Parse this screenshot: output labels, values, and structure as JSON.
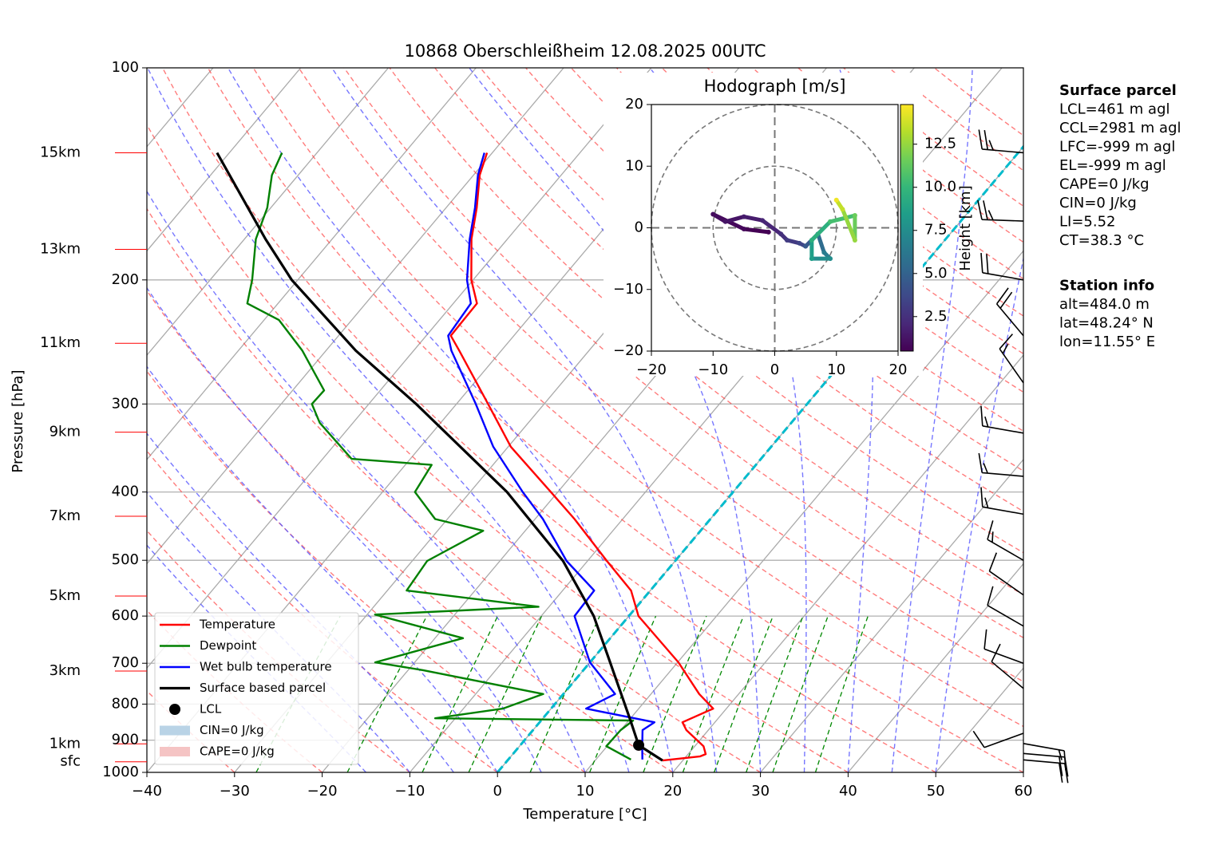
{
  "chart_data": {
    "type": "skewt",
    "title": "10868 Oberschleißheim 12.08.2025 00UTC",
    "xlabel": "Temperature [°C]",
    "ylabel": "Pressure [hPa]",
    "xlim": [
      -40,
      60
    ],
    "ylim": [
      1000,
      100
    ],
    "xticks": [
      {
        "value": -40,
        "label": "−40"
      },
      {
        "value": -30,
        "label": "−30"
      },
      {
        "value": -20,
        "label": "−20"
      },
      {
        "value": -10,
        "label": "−10"
      },
      0,
      10,
      20,
      30,
      40,
      50,
      60
    ],
    "yticks": [
      100,
      200,
      300,
      400,
      500,
      600,
      700,
      800,
      900,
      1000
    ],
    "grid": true,
    "series": [
      {
        "name": "Temperature",
        "color": "#ff0000",
        "pressure": [
          962,
          949,
          942,
          918,
          871,
          849,
          812,
          774,
          698,
          600,
          552,
          501,
          437,
          400,
          345,
          300,
          252,
          240,
          216,
          200,
          175,
          158,
          142,
          132
        ],
        "values": [
          17.7,
          21.6,
          22.0,
          21.0,
          17.5,
          16.3,
          18.5,
          15.5,
          10.1,
          1.1,
          -2.2,
          -7.8,
          -15.5,
          -20.8,
          -29.7,
          -36.4,
          -44.8,
          -47.2,
          -47.3,
          -50.2,
          -54.1,
          -56.5,
          -59.3,
          -60.6
        ]
      },
      {
        "name": "Dewpoint",
        "color": "#008000",
        "pressure": [
          959,
          918,
          871,
          844,
          838,
          812,
          774,
          716,
          698,
          645,
          597,
          582,
          552,
          501,
          454,
          437,
          400,
          366,
          359,
          319,
          300,
          287,
          252,
          228,
          216,
          200,
          175,
          158,
          142,
          132
        ],
        "values": [
          14.0,
          9.9,
          10.0,
          10.5,
          -12.3,
          -5.5,
          -2.3,
          -18.3,
          -24.5,
          -16.8,
          -29.1,
          -11.2,
          -27.8,
          -28.3,
          -24.8,
          -31.4,
          -36.3,
          -37.0,
          -46.7,
          -53.8,
          -56.5,
          -56.4,
          -62.7,
          -68.3,
          -73.5,
          -75.2,
          -78.7,
          -80.4,
          -83.0,
          -84.0
        ]
      },
      {
        "name": "Wet bulb temperature",
        "color": "#0000ff",
        "pressure": [
          959,
          918,
          871,
          849,
          812,
          774,
          698,
          600,
          552,
          501,
          437,
          400,
          345,
          300,
          252,
          240,
          216,
          200,
          175,
          158,
          142,
          132
        ],
        "values": [
          15.3,
          14.0,
          12.5,
          13.1,
          4.0,
          5.9,
          0.0,
          -6.2,
          -6.4,
          -12.4,
          -19.1,
          -24.0,
          -31.7,
          -37.8,
          -45.7,
          -47.5,
          -48.0,
          -50.7,
          -54.3,
          -56.7,
          -59.5,
          -60.9
        ]
      },
      {
        "name": "Surface based parcel",
        "color": "#000000",
        "pressure": [
          962,
          915,
          844,
          698,
          600,
          501,
          400,
          300,
          252,
          200,
          175,
          132
        ],
        "values": [
          17.7,
          13.5,
          10.2,
          2.3,
          -4.0,
          -12.8,
          -25.8,
          -44.6,
          -56.6,
          -70.7,
          -77.6,
          -91.4
        ]
      }
    ],
    "lcl": {
      "name": "LCL",
      "pressure": 915,
      "value": 13.5,
      "color": "#000000"
    },
    "cin_label": "CIN=0 J/kg",
    "cape_label": "CAPE=0 J/kg",
    "heights": {
      "labels": [
        "15km",
        "13km",
        "11km",
        "9km",
        "7km",
        "5km",
        "3km",
        "1km",
        "sfc"
      ],
      "pressure": [
        132,
        181,
        246,
        329,
        433,
        562,
        718,
        911,
        966
      ],
      "color": "#ff0000"
    },
    "winds": {
      "pressure": [
        132,
        165,
        200,
        240,
        280,
        330,
        380,
        430,
        500,
        560,
        620,
        700,
        760,
        880,
        910,
        940,
        960
      ],
      "direction": [
        275,
        272,
        280,
        320,
        325,
        280,
        275,
        280,
        300,
        305,
        300,
        290,
        310,
        250,
        100,
        95,
        95
      ],
      "speed": [
        25,
        25,
        20,
        20,
        15,
        15,
        15,
        15,
        15,
        10,
        10,
        10,
        10,
        10,
        15,
        20,
        20
      ]
    },
    "hodograph": {
      "title": "Hodograph [m/s]",
      "xlim": [
        -20,
        20
      ],
      "ylim": [
        -20,
        20
      ],
      "xticks": [
        {
          "value": -20,
          "label": "−20"
        },
        {
          "value": -10,
          "label": "−10"
        },
        0,
        10,
        20
      ],
      "yticks": [
        {
          "value": -20,
          "label": "−20"
        },
        {
          "value": -10,
          "label": "−10"
        },
        0,
        10,
        20
      ],
      "u": [
        -1,
        -5,
        -10,
        -8,
        -5,
        -2,
        1,
        2,
        4,
        5,
        7,
        8,
        9,
        6,
        6,
        9,
        13,
        13,
        11,
        10
      ],
      "v": [
        -0.7,
        -0.2,
        2.2,
        1.0,
        1.8,
        1.2,
        -1.0,
        -2.0,
        -2.5,
        -3.0,
        -1.0,
        -4.0,
        -5.0,
        -5.0,
        -2.0,
        1.0,
        2.0,
        -2.0,
        3.0,
        4.5
      ],
      "height": [
        0.5,
        0.8,
        1.0,
        1.3,
        1.6,
        2.0,
        2.5,
        3.0,
        3.5,
        4.5,
        5.5,
        6.5,
        7.5,
        8.5,
        9.5,
        10.5,
        11.5,
        12.5,
        13.5,
        14.5
      ],
      "colormap": "viridis",
      "colorbar_label": "Height [km]",
      "colorbar_lim": [
        0.5,
        14.8
      ],
      "colorbar_ticks": [
        2.5,
        {
          "value": 5,
          "label": "5.0"
        },
        7.5,
        {
          "value": 10,
          "label": "10.0"
        },
        12.5
      ]
    },
    "info": [
      {
        "title": "Surface parcel",
        "lines": [
          "LCL=461 m agl",
          "CCL=2981 m agl",
          "LFC=-999 m agl",
          "EL=-999 m agl",
          "CAPE=0 J/kg",
          "CIN=0 J/kg",
          "LI=5.52",
          "CT=38.3 °C"
        ]
      },
      {
        "title": "Station info",
        "lines": [
          "alt=484.0 m",
          "lat=48.24° N",
          "lon=11.55° E"
        ]
      }
    ]
  }
}
